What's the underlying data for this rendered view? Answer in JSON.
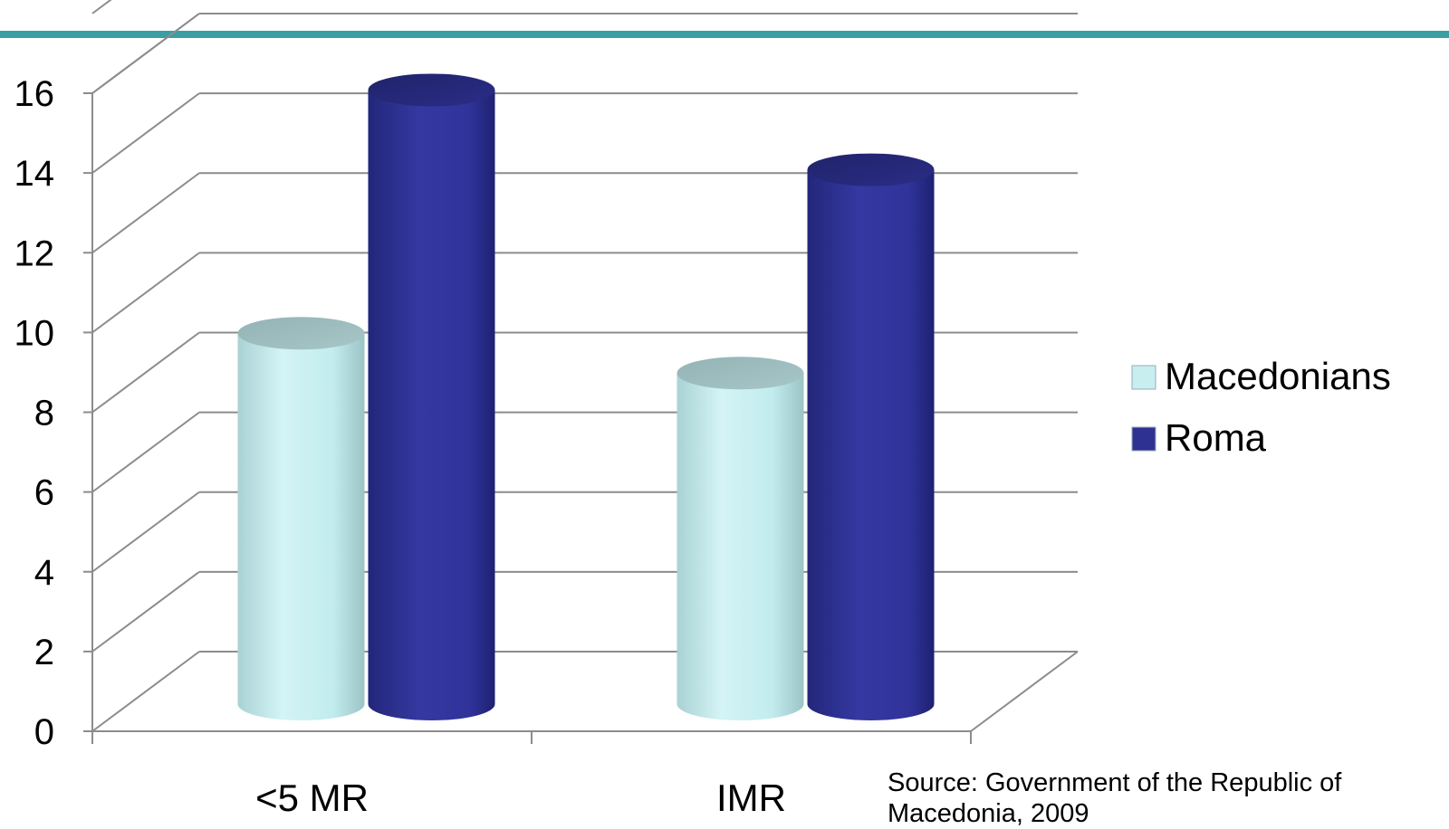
{
  "chart_data": {
    "type": "bar",
    "categories": [
      "<5 MR",
      "IMR"
    ],
    "series": [
      {
        "name": "Macedonians",
        "values": [
          9.3,
          8.3
        ],
        "color": "#c8eef0"
      },
      {
        "name": "Roma",
        "values": [
          15.4,
          13.4
        ],
        "color": "#2e3192"
      }
    ],
    "ylim": [
      0,
      16
    ],
    "yticks": [
      0,
      2,
      4,
      6,
      8,
      10,
      12,
      14,
      16
    ],
    "grid": true,
    "legend_position": "right",
    "three_d": true,
    "bar_shape": "cylinder"
  },
  "source_note": "Source: Government of the Republic of Macedonia, 2009",
  "colors": {
    "top_rule": "#3a9ea5",
    "gridline": "#8c8c8c"
  }
}
